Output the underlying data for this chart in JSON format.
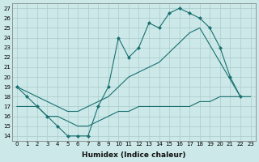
{
  "xlabel": "Humidex (Indice chaleur)",
  "xlim": [
    -0.5,
    23.5
  ],
  "ylim": [
    13.5,
    27.5
  ],
  "yticks": [
    14,
    15,
    16,
    17,
    18,
    19,
    20,
    21,
    22,
    23,
    24,
    25,
    26,
    27
  ],
  "xticks": [
    0,
    1,
    2,
    3,
    4,
    5,
    6,
    7,
    8,
    9,
    10,
    11,
    12,
    13,
    14,
    15,
    16,
    17,
    18,
    19,
    20,
    21,
    22,
    23
  ],
  "bg_color": "#cce8e8",
  "grid_color": "#aacccc",
  "line_color": "#1a7070",
  "curve1_x": [
    0,
    1,
    2,
    3,
    4,
    5,
    6,
    7,
    8,
    9,
    10,
    11,
    12,
    13,
    14,
    15,
    16,
    17,
    18,
    19,
    20,
    21,
    22
  ],
  "curve1_y": [
    19,
    18,
    17,
    16,
    15,
    14,
    14,
    14,
    17,
    19,
    24,
    22,
    23,
    25.5,
    25,
    26.5,
    27,
    26.5,
    26,
    25,
    23,
    20,
    18
  ],
  "curve2_x": [
    0,
    1,
    2,
    3,
    4,
    5,
    6,
    7,
    8,
    9,
    10,
    11,
    12,
    13,
    14,
    15,
    16,
    17,
    18,
    22
  ],
  "curve2_y": [
    19,
    18.5,
    18,
    17.5,
    17,
    16.5,
    16.5,
    17,
    17.5,
    18,
    19,
    20,
    20.5,
    21,
    21.5,
    22.5,
    23.5,
    24.5,
    25,
    18
  ],
  "curve3_x": [
    0,
    1,
    2,
    3,
    4,
    5,
    6,
    7,
    8,
    9,
    10,
    11,
    12,
    13,
    14,
    15,
    16,
    17,
    18,
    19,
    20,
    21,
    22,
    23
  ],
  "curve3_y": [
    17,
    17,
    17,
    16,
    16,
    15.5,
    15,
    15,
    15.5,
    16,
    16.5,
    16.5,
    17,
    17,
    17,
    17,
    17,
    17,
    17.5,
    17.5,
    18,
    18,
    18,
    18
  ],
  "markersize": 2.5
}
